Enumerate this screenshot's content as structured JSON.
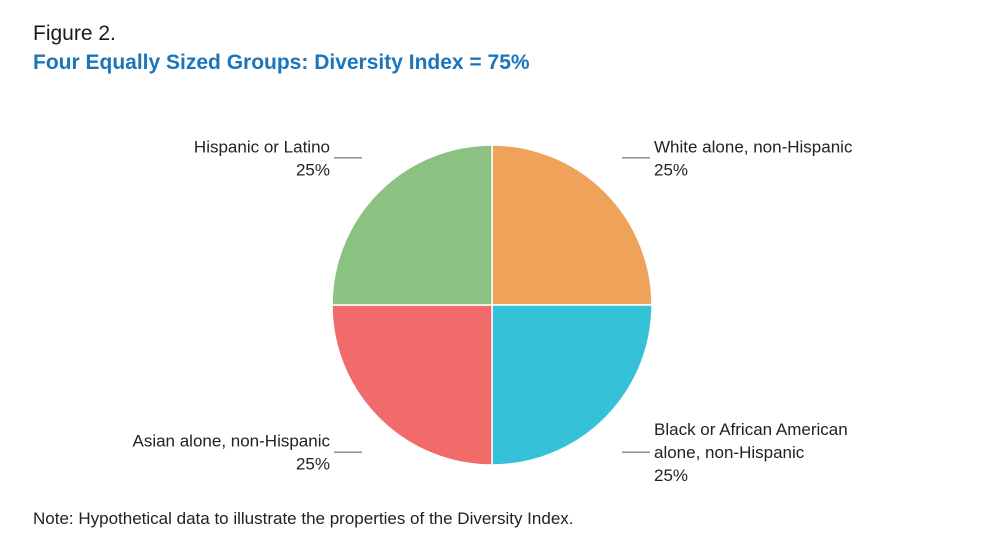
{
  "figure": {
    "label": "Figure 2.",
    "title": "Four Equally Sized Groups: Diversity Index = 75%",
    "title_color": "#1b75bb",
    "note": "Note: Hypothetical data to illustrate the properties of the Diversity Index."
  },
  "chart_data": {
    "type": "pie",
    "title": "Four Equally Sized Groups: Diversity Index = 75%",
    "unit": "%",
    "slices": [
      {
        "label": "White alone, non-Hispanic",
        "label_lines": [
          "White alone, non-Hispanic"
        ],
        "value": 25,
        "value_label": "25%",
        "color": "#efa25a"
      },
      {
        "label": "Black or African American alone, non-Hispanic",
        "label_lines": [
          "Black or African American",
          "alone, non-Hispanic"
        ],
        "value": 25,
        "value_label": "25%",
        "color": "#35c2d8"
      },
      {
        "label": "Asian alone, non-Hispanic",
        "label_lines": [
          "Asian alone, non-Hispanic"
        ],
        "value": 25,
        "value_label": "25%",
        "color": "#f06b6a"
      },
      {
        "label": "Hispanic or Latino",
        "label_lines": [
          "Hispanic or Latino"
        ],
        "value": 25,
        "value_label": "25%",
        "color": "#8bc282"
      }
    ]
  }
}
